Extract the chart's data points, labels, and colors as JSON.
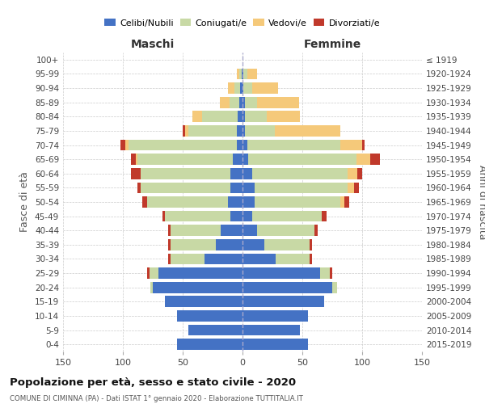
{
  "age_groups": [
    "0-4",
    "5-9",
    "10-14",
    "15-19",
    "20-24",
    "25-29",
    "30-34",
    "35-39",
    "40-44",
    "45-49",
    "50-54",
    "55-59",
    "60-64",
    "65-69",
    "70-74",
    "75-79",
    "80-84",
    "85-89",
    "90-94",
    "95-99",
    "100+"
  ],
  "birth_years": [
    "2015-2019",
    "2010-2014",
    "2005-2009",
    "2000-2004",
    "1995-1999",
    "1990-1994",
    "1985-1989",
    "1980-1984",
    "1975-1979",
    "1970-1974",
    "1965-1969",
    "1960-1964",
    "1955-1959",
    "1950-1954",
    "1945-1949",
    "1940-1944",
    "1935-1939",
    "1930-1934",
    "1925-1929",
    "1920-1924",
    "≤ 1919"
  ],
  "males": {
    "celibi": [
      55,
      45,
      55,
      65,
      75,
      70,
      32,
      22,
      18,
      10,
      12,
      10,
      10,
      8,
      5,
      5,
      4,
      3,
      2,
      1,
      0
    ],
    "coniugati": [
      0,
      0,
      0,
      0,
      2,
      8,
      28,
      38,
      42,
      55,
      68,
      75,
      75,
      80,
      90,
      40,
      30,
      8,
      5,
      2,
      0
    ],
    "vedovi": [
      0,
      0,
      0,
      0,
      0,
      0,
      0,
      0,
      0,
      0,
      0,
      0,
      0,
      1,
      3,
      3,
      8,
      8,
      5,
      2,
      0
    ],
    "divorziati": [
      0,
      0,
      0,
      0,
      0,
      2,
      2,
      2,
      2,
      2,
      4,
      3,
      8,
      4,
      4,
      2,
      0,
      0,
      0,
      0,
      0
    ]
  },
  "females": {
    "nubili": [
      55,
      48,
      55,
      68,
      75,
      65,
      28,
      18,
      12,
      8,
      10,
      10,
      8,
      5,
      4,
      2,
      2,
      2,
      1,
      1,
      0
    ],
    "coniugate": [
      0,
      0,
      0,
      0,
      4,
      8,
      28,
      38,
      48,
      58,
      72,
      78,
      80,
      90,
      78,
      25,
      18,
      10,
      7,
      3,
      0
    ],
    "vedove": [
      0,
      0,
      0,
      0,
      0,
      0,
      0,
      0,
      0,
      0,
      3,
      5,
      8,
      12,
      18,
      55,
      28,
      35,
      22,
      8,
      0
    ],
    "divorziate": [
      0,
      0,
      0,
      0,
      0,
      2,
      2,
      2,
      3,
      4,
      4,
      4,
      4,
      8,
      2,
      0,
      0,
      0,
      0,
      0,
      0
    ]
  },
  "colors": {
    "celibi_nubili": "#4472c4",
    "coniugati": "#c8d9a5",
    "vedovi": "#f5c97a",
    "divorziati": "#c0392b"
  },
  "xlim": 150,
  "title": "Popolazione per età, sesso e stato civile - 2020",
  "subtitle": "COMUNE DI CIMINNA (PA) - Dati ISTAT 1° gennaio 2020 - Elaborazione TUTTITALIA.IT",
  "left_label": "Maschi",
  "right_label": "Femmine",
  "y_left_label": "Fasce di età",
  "y_right_label": "Anni di nascita",
  "legend_labels": [
    "Celibi/Nubili",
    "Coniugati/e",
    "Vedovi/e",
    "Divorziati/e"
  ],
  "bg_color": "#ffffff",
  "grid_color": "#cccccc"
}
